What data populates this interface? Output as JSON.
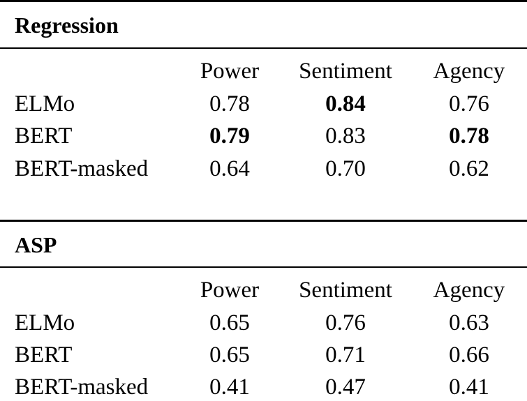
{
  "sections": [
    {
      "title": "Regression",
      "columns": [
        "Power",
        "Sentiment",
        "Agency"
      ],
      "rows": [
        {
          "label": "ELMo",
          "values": [
            "0.78",
            "0.84",
            "0.76"
          ],
          "bold": [
            false,
            true,
            false
          ]
        },
        {
          "label": "BERT",
          "values": [
            "0.79",
            "0.83",
            "0.78"
          ],
          "bold": [
            true,
            false,
            true
          ]
        },
        {
          "label": "BERT-masked",
          "values": [
            "0.64",
            "0.70",
            "0.62"
          ],
          "bold": [
            false,
            false,
            false
          ]
        }
      ]
    },
    {
      "title": "ASP",
      "columns": [
        "Power",
        "Sentiment",
        "Agency"
      ],
      "rows": [
        {
          "label": "ELMo",
          "values": [
            "0.65",
            "0.76",
            "0.63"
          ],
          "bold": [
            false,
            false,
            false
          ]
        },
        {
          "label": "BERT",
          "values": [
            "0.65",
            "0.71",
            "0.66"
          ],
          "bold": [
            false,
            false,
            false
          ]
        },
        {
          "label": "BERT-masked",
          "values": [
            "0.41",
            "0.47",
            "0.41"
          ],
          "bold": [
            false,
            false,
            false
          ]
        }
      ]
    }
  ]
}
